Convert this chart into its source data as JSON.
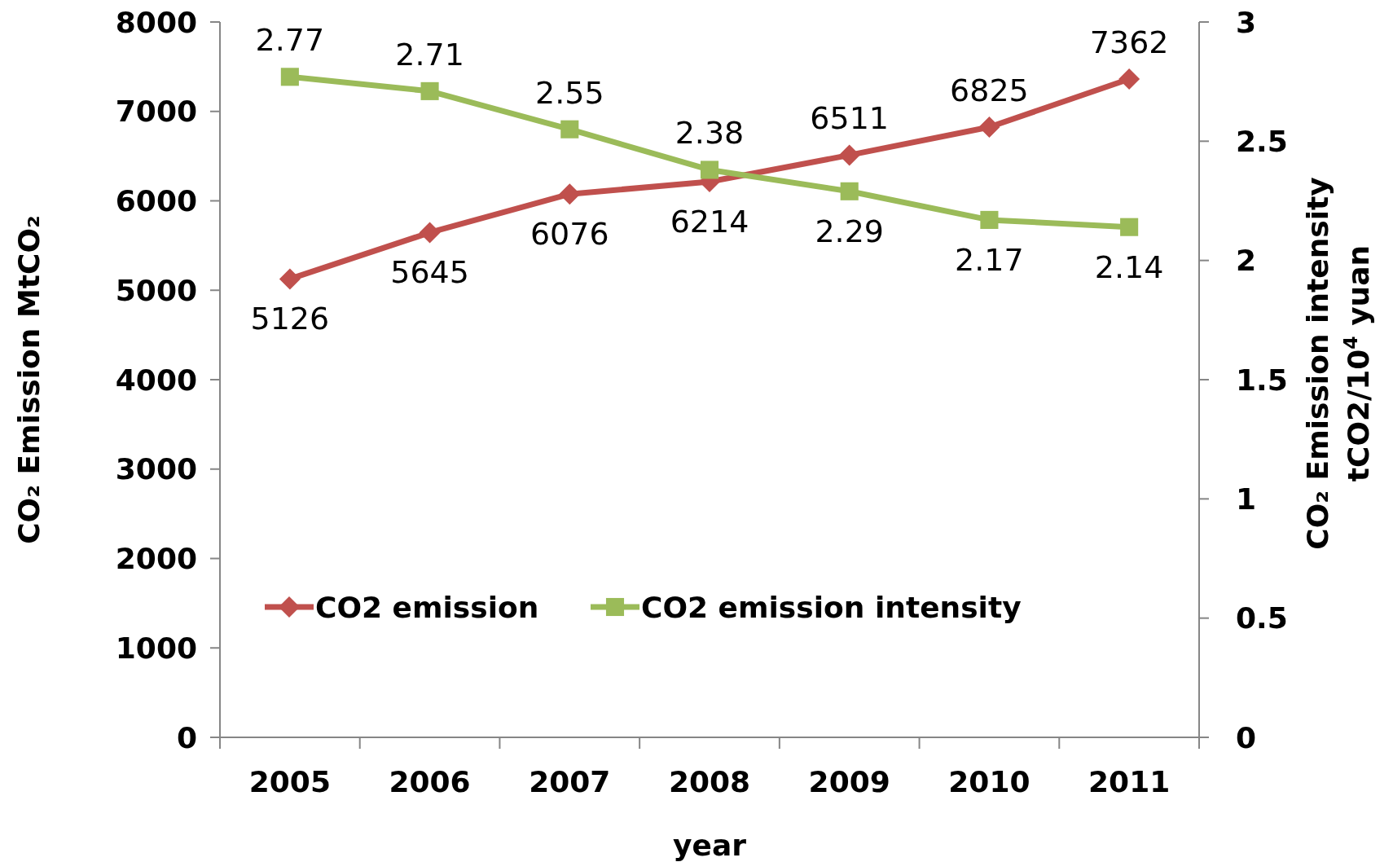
{
  "chart_data": {
    "type": "line",
    "xlabel": "year",
    "ylabel": "CO₂ Emission   MtCO₂",
    "y2label": "CO₂ Emission intensity\ntCO2/10$^{4}$ yuan",
    "categories": [
      "2005",
      "2006",
      "2007",
      "2008",
      "2009",
      "2010",
      "2011"
    ],
    "series": [
      {
        "name": "CO2 emission",
        "color": "#c0504d",
        "marker": "diamond",
        "values": [
          5126,
          5645,
          6076,
          6214,
          6511,
          6825,
          7362
        ]
      },
      {
        "name": "CO2 emission intensity",
        "color": "#9bbb59",
        "marker": "square",
        "axis": "y2",
        "values": [
          2.77,
          2.71,
          2.55,
          2.38,
          2.29,
          2.17,
          2.14
        ]
      }
    ],
    "ylim": [
      0,
      8000
    ],
    "yticks": [
      0,
      1000,
      2000,
      3000,
      4000,
      5000,
      6000,
      7000,
      8000
    ],
    "y2lim": [
      0,
      3
    ],
    "y2ticks": [
      0,
      0.5,
      1,
      1.5,
      2,
      2.5,
      3
    ],
    "data_labels": true,
    "legend": "bottom left",
    "grid": false,
    "line_style": "solid"
  }
}
